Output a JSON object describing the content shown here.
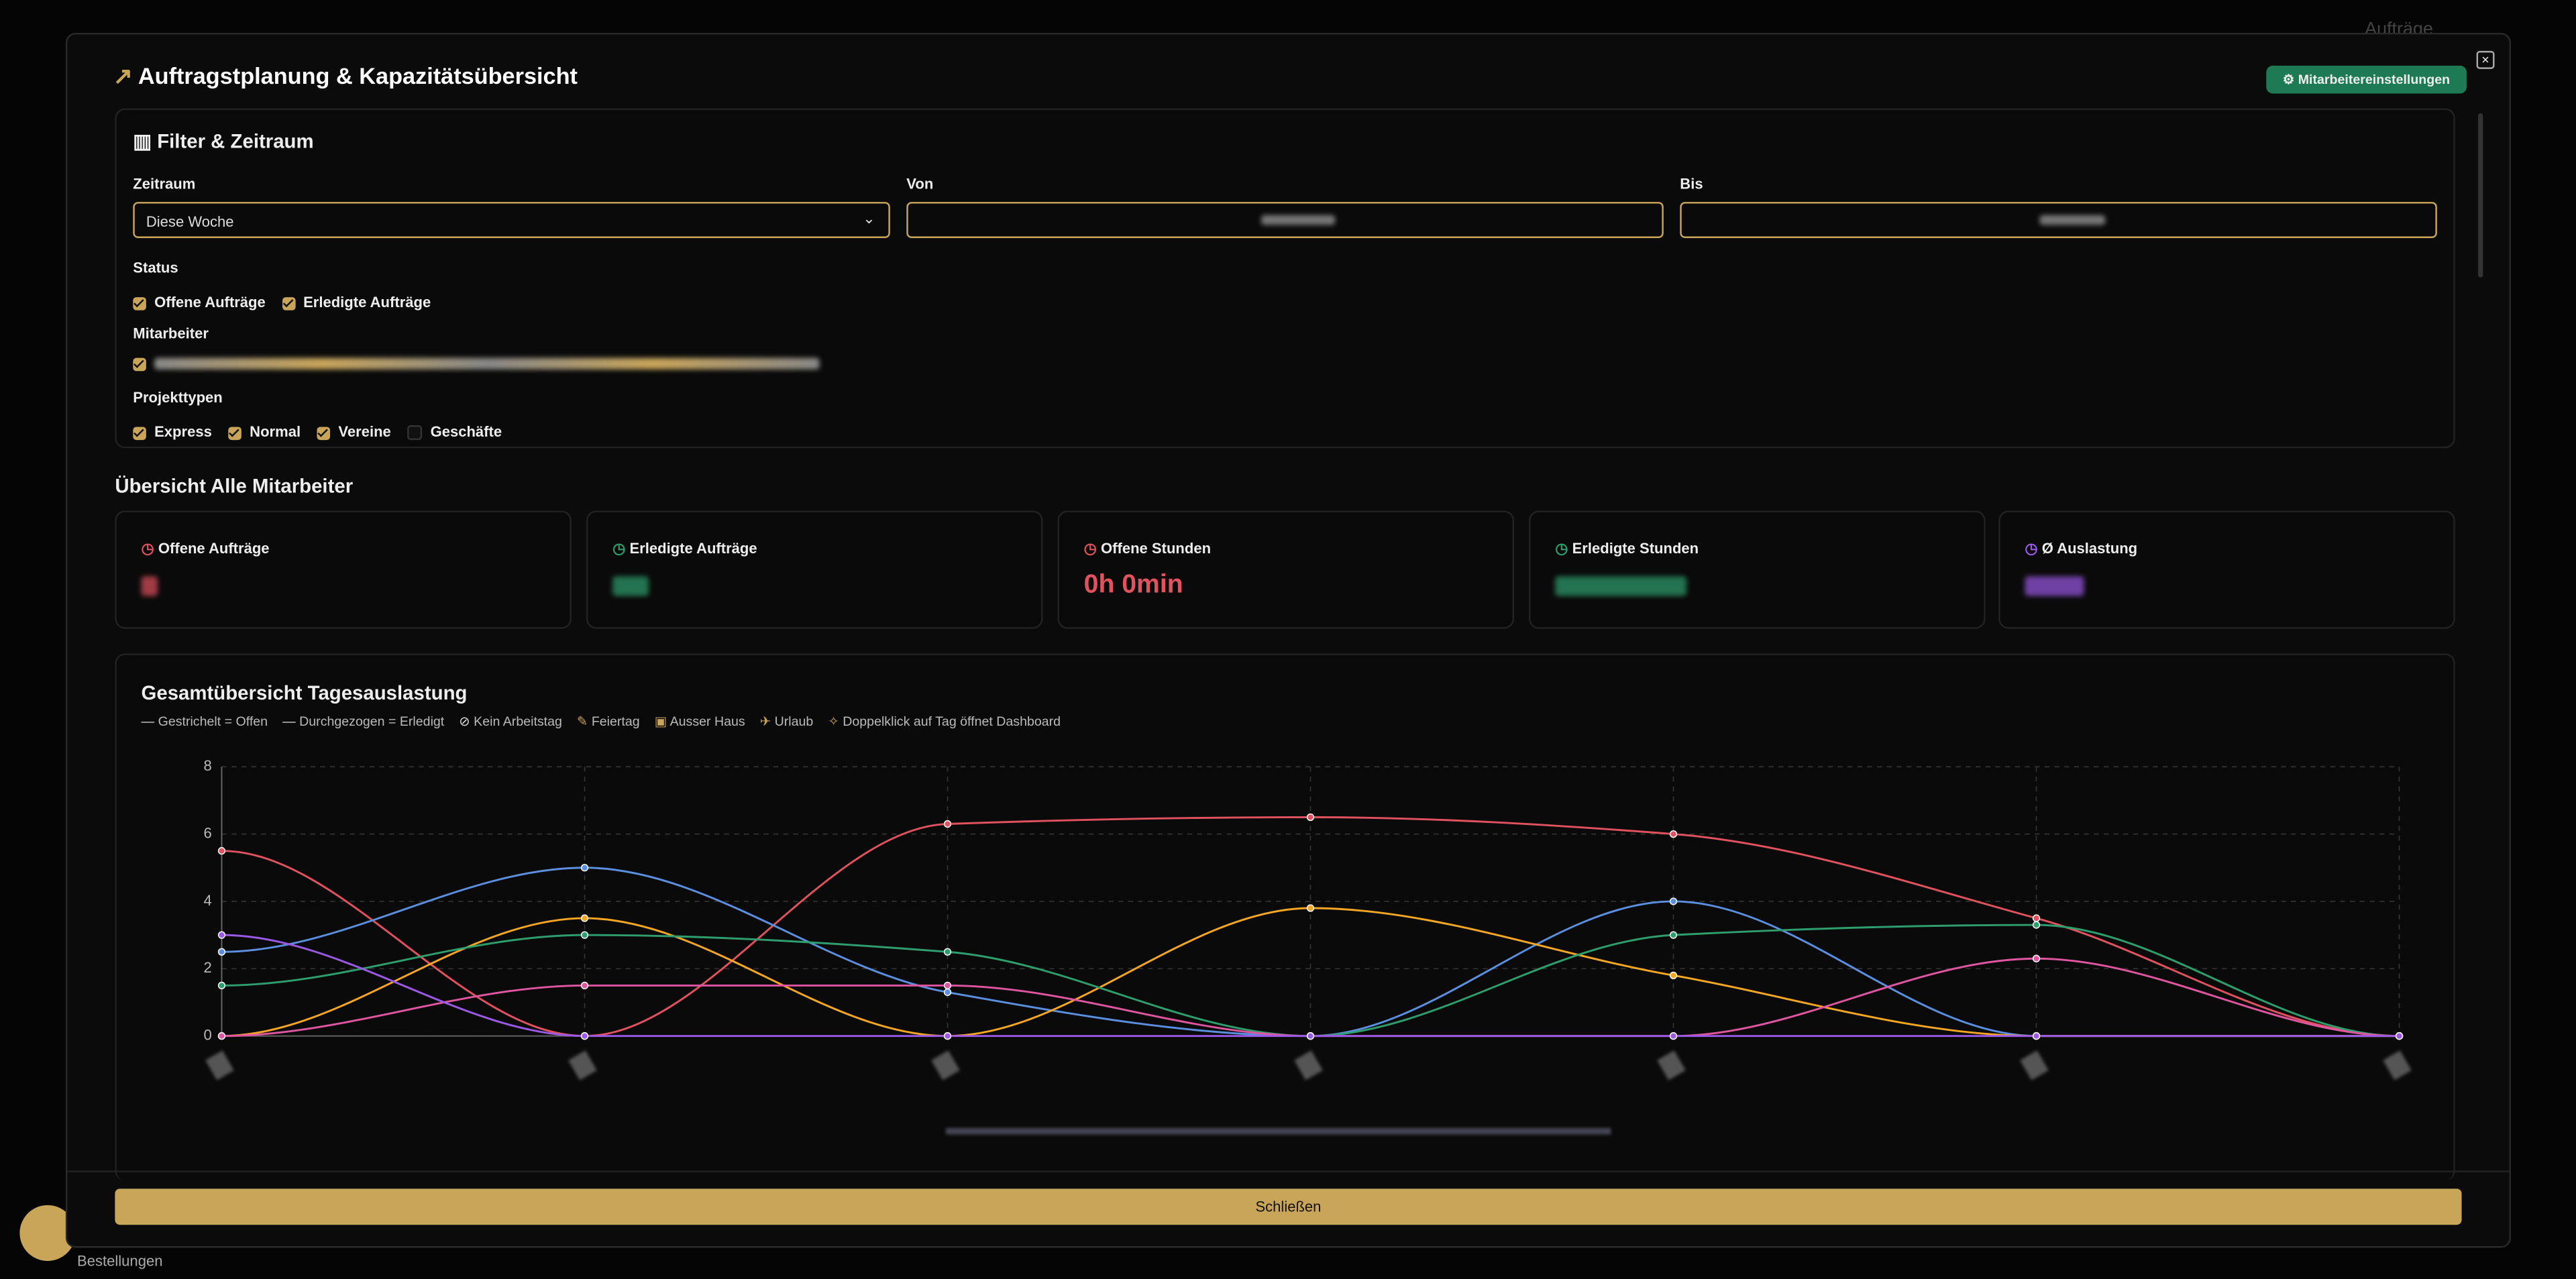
{
  "background": {
    "top_right": "Aufträge",
    "bottom_left": "Bestellungen"
  },
  "header": {
    "title": "Auftragstplanung & Kapazitätsübersicht",
    "settings_button": "Mitarbeitereinstellungen"
  },
  "filters": {
    "title": "Filter & Zeitraum",
    "zeitraum_label": "Zeitraum",
    "zeitraum_value": "Diese Woche",
    "von_label": "Von",
    "bis_label": "Bis",
    "status_label": "Status",
    "status": [
      "Offene Aufträge",
      "Erledigte Aufträge"
    ],
    "mitarbeiter_label": "Mitarbeiter",
    "projekttypen_label": "Projekttypen",
    "projekttypen": [
      "Express",
      "Normal",
      "Vereine",
      "Geschäfte"
    ]
  },
  "overview": {
    "title": "Übersicht Alle Mitarbeiter",
    "cards": [
      {
        "label": "Offene Aufträge"
      },
      {
        "label": "Erledigte Aufträge"
      },
      {
        "label": "Offene Stunden",
        "value": "0h 0min"
      },
      {
        "label": "Erledigte Stunden"
      },
      {
        "label": "Ø Auslastung"
      }
    ]
  },
  "chart_data": {
    "type": "line",
    "title": "Gesamtübersicht Tagesauslastung",
    "notes": [
      "Gestrichelt = Offen",
      "Durchgezogen = Erledigt",
      "Kein Arbeitstag",
      "Feiertag",
      "Ausser Haus",
      "Urlaub",
      "Doppelklick auf Tag öffnet Dashboard"
    ],
    "categories": [
      null,
      null,
      null,
      null,
      null,
      null,
      null
    ],
    "series": [
      {
        "color": "#e0525e",
        "values": [
          5.5,
          0,
          6.3,
          6.5,
          6,
          3.5,
          0
        ]
      },
      {
        "color": "#5b8fe0",
        "values": [
          2.5,
          5,
          1.3,
          0,
          4,
          0,
          0
        ]
      },
      {
        "color": "#f5a623",
        "values": [
          0,
          3.5,
          0,
          3.8,
          1.8,
          0,
          0
        ]
      },
      {
        "color": "#2e9e6e",
        "values": [
          1.5,
          3,
          2.5,
          0,
          3,
          3.3,
          0
        ]
      },
      {
        "color": "#e0559f",
        "values": [
          0,
          1.5,
          1.5,
          0,
          0,
          2.3,
          0
        ]
      },
      {
        "color": "#9b59e6",
        "values": [
          3,
          0,
          0,
          0,
          0,
          0,
          0
        ]
      }
    ],
    "ylim": [
      0,
      8
    ],
    "yticks": [
      0,
      2,
      4,
      6,
      8
    ],
    "grid": true
  },
  "footer": {
    "close_button": "Schließen"
  }
}
